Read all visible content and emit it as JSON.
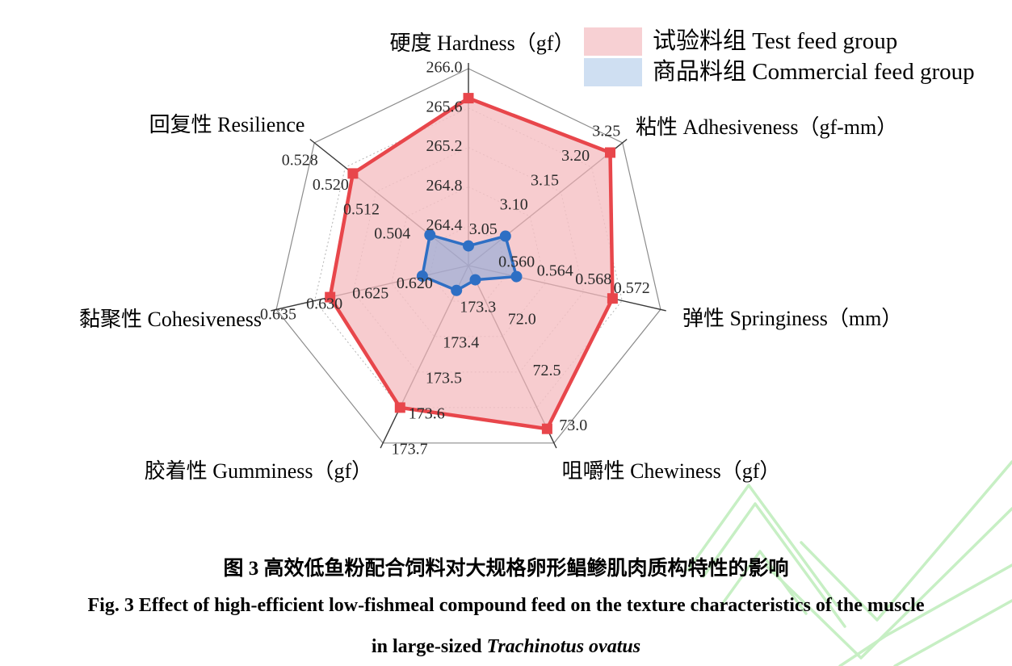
{
  "figure": {
    "caption_zh": "图 3  高效低鱼粉配合饲料对大规格卵形鲳鲹肌肉质构特性的影响",
    "caption_en_line1": "Fig. 3    Effect of high-efficient low-fishmeal compound feed on the texture characteristics of the muscle",
    "caption_en_line2_prefix": "in large-sized ",
    "caption_en_species": "Trachinotus ovatus"
  },
  "chart_data": {
    "type": "radar",
    "rings": 5,
    "grid": "heptagon web, 5 concentric rings, dotted inner rings, solid outer ring",
    "legend_position": "top-right",
    "axes": [
      {
        "label": "硬度 Hardness（gf）",
        "min": 264.0,
        "max": 266.0,
        "ticks": [
          {
            "t": "264.4",
            "ring": 1
          },
          {
            "t": "264.8",
            "ring": 2
          },
          {
            "t": "265.2",
            "ring": 3
          },
          {
            "t": "265.6",
            "ring": 4
          },
          {
            "t": "266.0",
            "ring": 5
          }
        ]
      },
      {
        "label": "粘性 Adhesiveness（gf-mm）",
        "min": 3.0,
        "max": 3.25,
        "ticks": [
          {
            "t": "3.05",
            "ring": 1
          },
          {
            "t": "3.10",
            "ring": 2
          },
          {
            "t": "3.15",
            "ring": 3
          },
          {
            "t": "3.20",
            "ring": 4
          },
          {
            "t": "3.25",
            "ring": 5
          }
        ]
      },
      {
        "label": "弹性 Springiness（mm）",
        "min": 0.556,
        "max": 0.576,
        "ticks": [
          {
            "t": "0.560",
            "ring": 1
          },
          {
            "t": "0.564",
            "ring": 2
          },
          {
            "t": "0.568",
            "ring": 3
          },
          {
            "t": "0.572",
            "ring": 4
          }
        ]
      },
      {
        "label": "咀嚼性 Chewiness（gf）",
        "min": 70.5,
        "max": 73.0,
        "ticks": [
          {
            "t": "72.0",
            "ring": 1.95
          },
          {
            "t": "72.5",
            "ring": 3.4
          },
          {
            "t": "73.0",
            "ring": 4.95
          }
        ]
      },
      {
        "label": "胶着性 Gumminess（gf）",
        "min": 173.2,
        "max": 173.7,
        "ticks": [
          {
            "t": "173.3",
            "ring": 1
          },
          {
            "t": "173.4",
            "ring": 2
          },
          {
            "t": "173.5",
            "ring": 3
          },
          {
            "t": "173.6",
            "ring": 4
          },
          {
            "t": "173.7",
            "ring": 5
          }
        ]
      },
      {
        "label": "黏聚性 Cohesiveness",
        "min": 0.61,
        "max": 0.635,
        "ticks": [
          {
            "t": "0.620",
            "ring": 1.4
          },
          {
            "t": "0.625",
            "ring": 2.55
          },
          {
            "t": "0.630",
            "ring": 3.75
          },
          {
            "t": "0.635",
            "ring": 4.95
          }
        ]
      },
      {
        "label": "回复性 Resilience",
        "min": 0.488,
        "max": 0.528,
        "ticks": [
          {
            "t": "0.504",
            "ring": 2
          },
          {
            "t": "0.512",
            "ring": 3
          },
          {
            "t": "0.520",
            "ring": 4
          },
          {
            "t": "0.528",
            "ring": 5
          }
        ]
      }
    ],
    "series": [
      {
        "name": "试验料组 Test feed group",
        "values": [
          265.7,
          3.23,
          0.571,
          72.8,
          173.6,
          0.628,
          0.518
        ],
        "line_color": "#e8464b",
        "fill_color": "#f5bfc3",
        "fill_opacity": 0.8,
        "marker": "square",
        "legend_swatch": "#f7d0d3"
      },
      {
        "name": "商品料组 Commercial feed group",
        "values": [
          264.2,
          3.06,
          0.561,
          70.7,
          173.27,
          0.616,
          0.498
        ],
        "line_color": "#2e6fc4",
        "fill_color": "#8aa8d8",
        "fill_opacity": 0.6,
        "marker": "circle",
        "legend_swatch": "#cfdff2"
      }
    ]
  },
  "watermark": {
    "color": "#a2e59e"
  }
}
